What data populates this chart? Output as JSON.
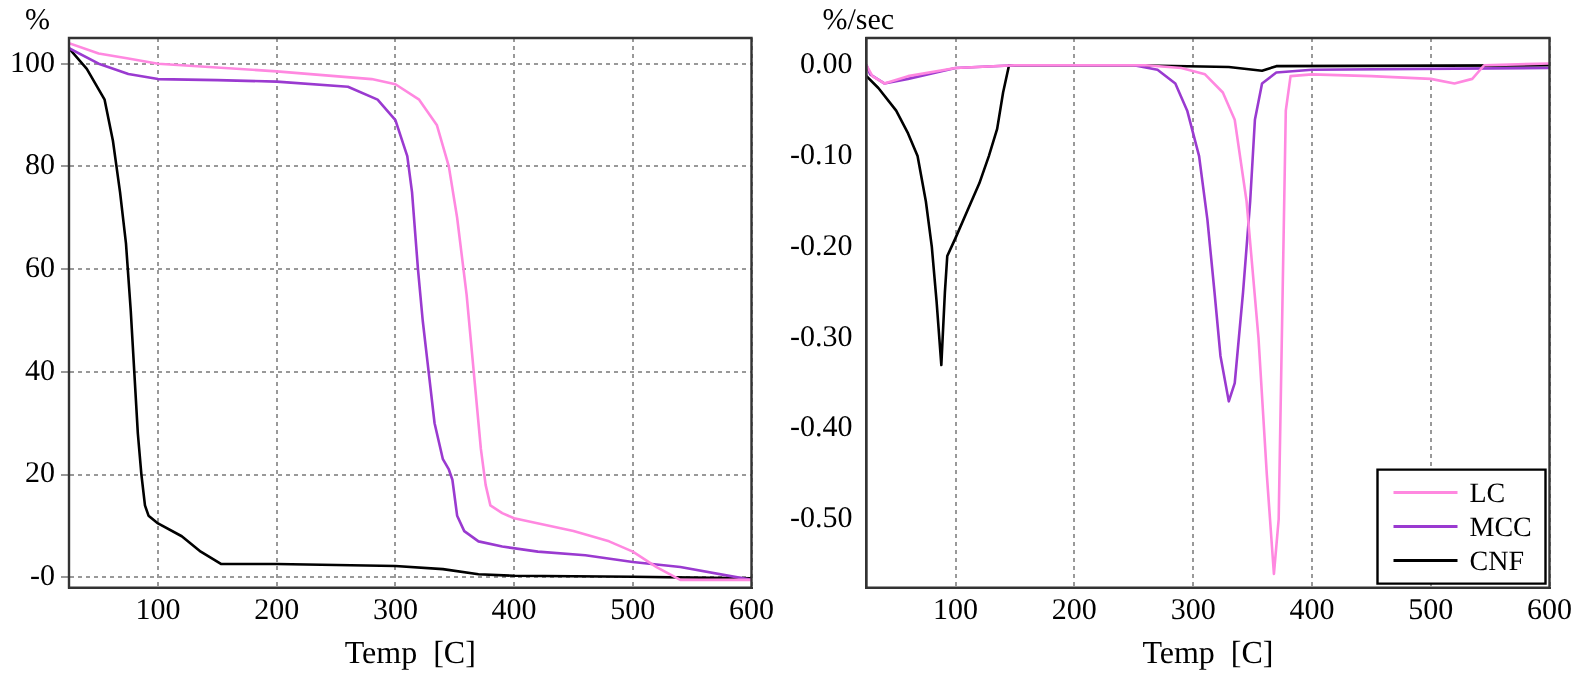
{
  "chart_data": [
    {
      "type": "line",
      "ylabel": "%",
      "xlabel": "Temp  [C]",
      "xlim": [
        25,
        600
      ],
      "ylim": [
        -2,
        105
      ],
      "xticks": [
        100,
        200,
        300,
        400,
        500,
        600
      ],
      "yticks": [
        {
          "value": 0,
          "label": "-0"
        },
        20,
        40,
        60,
        80,
        100
      ],
      "grid": true,
      "legend": false,
      "marker": "none",
      "line_style": "solid",
      "series": [
        {
          "color": "#ff88e0",
          "x": [
            25,
            50,
            75,
            100,
            200,
            280,
            300,
            320,
            335,
            345,
            352,
            360,
            366,
            372,
            376,
            380,
            390,
            400,
            450,
            480,
            500,
            520,
            540,
            600
          ],
          "values": [
            104,
            102,
            101,
            100,
            98.5,
            97,
            96,
            93,
            88,
            80,
            70,
            55,
            40,
            25,
            18,
            14,
            12.5,
            11.5,
            9,
            7,
            5,
            2,
            -0.5,
            -0.5
          ]
        },
        {
          "color": "#9a3ad0",
          "x": [
            25,
            50,
            75,
            100,
            150,
            200,
            260,
            285,
            300,
            310,
            314,
            319,
            323,
            327,
            333,
            340,
            345,
            348,
            352,
            358,
            370,
            390,
            420,
            460,
            500,
            540,
            600
          ],
          "values": [
            103,
            100,
            98,
            97,
            96.8,
            96.5,
            95.5,
            93,
            89,
            82,
            75,
            60,
            50,
            42,
            30,
            23,
            21,
            19,
            12,
            9,
            7,
            6,
            5,
            4.3,
            3,
            2,
            -0.5
          ]
        },
        {
          "color": "#000000",
          "x": [
            25,
            40,
            55,
            62,
            68,
            73,
            77,
            80,
            83,
            86,
            89,
            92,
            100,
            120,
            136,
            153,
            200,
            250,
            300,
            340,
            370,
            400,
            500,
            600
          ],
          "values": [
            103,
            99,
            93,
            85,
            75,
            65,
            52,
            40,
            28,
            20,
            14,
            12,
            10.5,
            8,
            5,
            2.6,
            2.6,
            2.4,
            2.2,
            1.6,
            0.6,
            0.3,
            0.1,
            -0.2
          ]
        }
      ]
    },
    {
      "type": "line",
      "ylabel": "%/sec",
      "xlabel": "Temp  [C]",
      "xlim": [
        25,
        600
      ],
      "ylim": [
        -0.575,
        0.03
      ],
      "xticks": [
        100,
        200,
        300,
        400,
        500,
        600
      ],
      "yticks": [
        {
          "value": -0.5,
          "label": "-0.50"
        },
        {
          "value": -0.4,
          "label": "-0.40"
        },
        {
          "value": -0.3,
          "label": "-0.30"
        },
        {
          "value": -0.2,
          "label": "-0.20"
        },
        {
          "value": -0.1,
          "label": "-0.10"
        },
        {
          "value": 0,
          "label": "0.00"
        }
      ],
      "grid": "x",
      "legend": "bottom right",
      "marker": "none",
      "line_style": "solid",
      "series": [
        {
          "name": "LC",
          "color": "#ff88e0",
          "x": [
            25,
            30,
            40,
            60,
            100,
            150,
            260,
            290,
            310,
            325,
            335,
            345,
            355,
            362,
            368,
            372,
            376,
            378,
            382,
            400,
            450,
            500,
            520,
            535,
            545,
            600
          ],
          "values": [
            0,
            -0.012,
            -0.02,
            -0.012,
            -0.003,
            0,
            0,
            -0.003,
            -0.01,
            -0.03,
            -0.06,
            -0.15,
            -0.3,
            -0.45,
            -0.56,
            -0.5,
            -0.2,
            -0.05,
            -0.012,
            -0.01,
            -0.012,
            -0.015,
            -0.02,
            -0.015,
            0,
            0.002
          ]
        },
        {
          "name": "MCC",
          "color": "#9a3ad0",
          "x": [
            25,
            28,
            40,
            60,
            100,
            150,
            250,
            270,
            285,
            295,
            305,
            312,
            318,
            323,
            330,
            335,
            342,
            348,
            352,
            358,
            370,
            400,
            600
          ],
          "values": [
            0,
            -0.01,
            -0.02,
            -0.015,
            -0.003,
            0,
            0,
            -0.005,
            -0.02,
            -0.05,
            -0.1,
            -0.17,
            -0.25,
            -0.32,
            -0.37,
            -0.35,
            -0.25,
            -0.15,
            -0.06,
            -0.02,
            -0.008,
            -0.005,
            -0.003
          ]
        },
        {
          "name": "CNF",
          "color": "#000000",
          "x": [
            25,
            35,
            50,
            60,
            68,
            75,
            80,
            84,
            88,
            91,
            93,
            100,
            110,
            120,
            128,
            135,
            140,
            145,
            250,
            330,
            358,
            370,
            600
          ],
          "values": [
            -0.012,
            -0.025,
            -0.05,
            -0.075,
            -0.1,
            -0.15,
            -0.2,
            -0.26,
            -0.33,
            -0.25,
            -0.21,
            -0.19,
            -0.16,
            -0.13,
            -0.1,
            -0.07,
            -0.03,
            0,
            0,
            -0.002,
            -0.006,
            -0.001,
            0
          ]
        }
      ]
    }
  ]
}
